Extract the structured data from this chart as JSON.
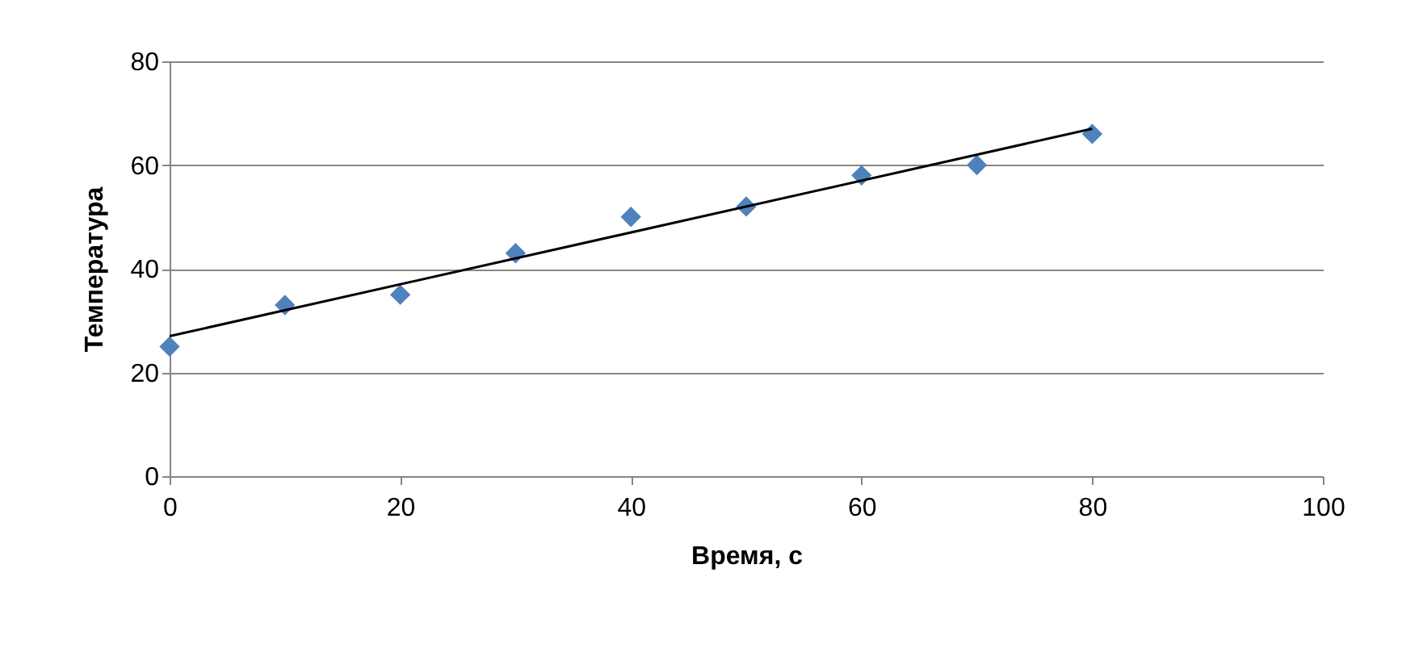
{
  "chart_data": {
    "type": "scatter",
    "xlabel": "Время, с",
    "ylabel": "Температура",
    "x": [
      0,
      10,
      20,
      30,
      40,
      50,
      60,
      70,
      80
    ],
    "series": [
      {
        "color": "#4f81bd",
        "marker": "diamond",
        "values": [
          25,
          33,
          35,
          43,
          50,
          52,
          58,
          60,
          66
        ]
      },
      {
        "type": "line",
        "color": "#000000",
        "marker": "none",
        "line_style": "solid",
        "x": [
          0,
          80
        ],
        "values": [
          27,
          67
        ]
      }
    ],
    "xlim": [
      0,
      100
    ],
    "xticks": [
      0,
      20,
      40,
      60,
      80,
      100
    ],
    "ylim": [
      0,
      80
    ],
    "yticks": [
      0,
      20,
      40,
      60,
      80
    ],
    "grid": "y"
  }
}
